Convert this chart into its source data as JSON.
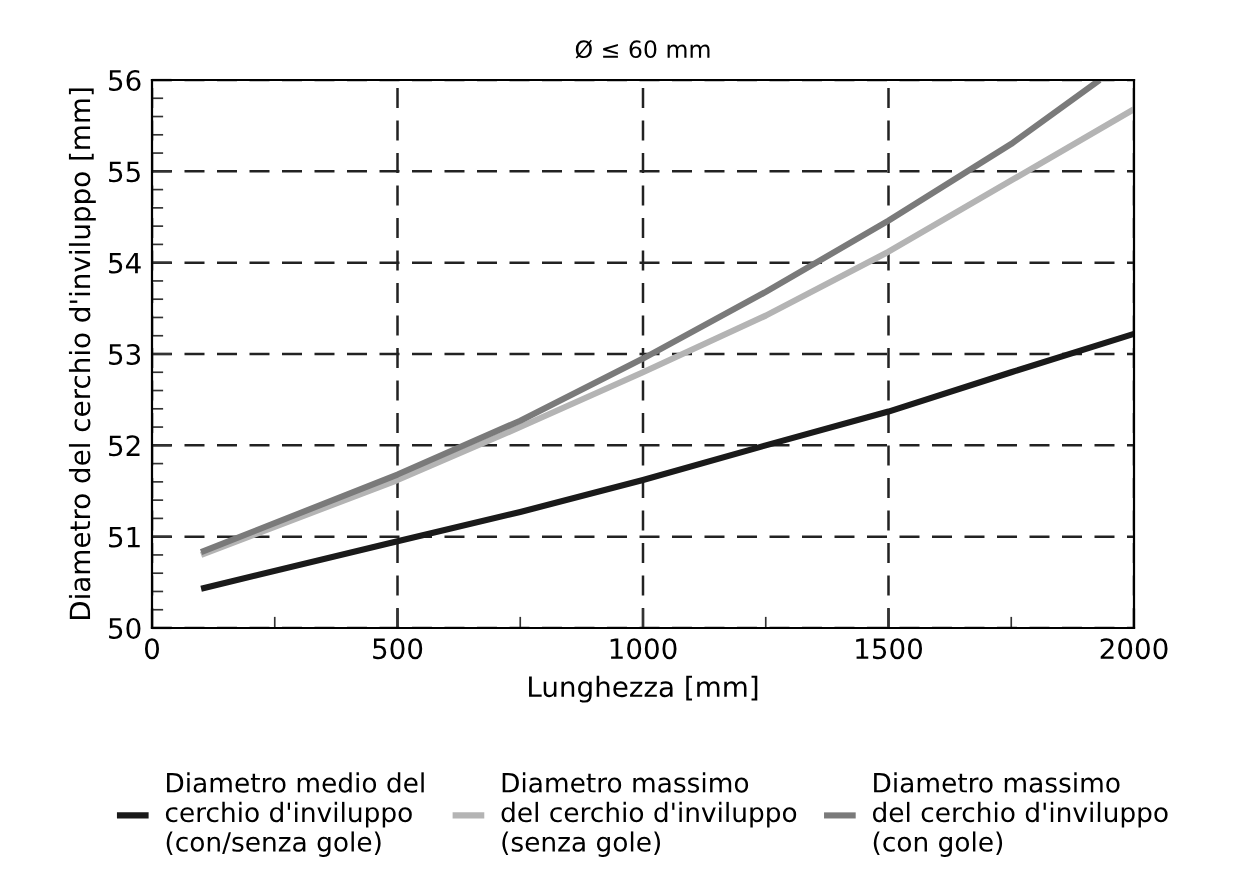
{
  "chart_data": {
    "type": "line",
    "title": "Ø ≤ 60 mm",
    "xlabel": "Lunghezza [mm]",
    "ylabel": "Diametro del cerchio d'inviluppo [mm]",
    "x": [
      100,
      500,
      750,
      1000,
      1250,
      1500,
      1750,
      2000
    ],
    "series": [
      {
        "name": "Diametro medio del\ncerchio d'inviluppo\n(con/senza gole)",
        "color": "#1a1a1a",
        "values": [
          50.43,
          50.95,
          51.27,
          51.62,
          52.0,
          52.37,
          52.8,
          53.22
        ]
      },
      {
        "name": "Diametro massimo\ndel cerchio d'inviluppo\n(senza gole)",
        "color": "#b4b4b4",
        "values": [
          50.8,
          51.62,
          52.2,
          52.8,
          53.42,
          54.12,
          54.9,
          55.68
        ]
      },
      {
        "name": "Diametro massimo\ndel cerchio d'inviluppo\n(con gole)",
        "color": "#7a7a7a",
        "x": [
          100,
          500,
          750,
          1000,
          1250,
          1500,
          1750,
          1930
        ],
        "values": [
          50.83,
          51.68,
          52.27,
          52.95,
          53.68,
          54.46,
          55.3,
          56.0
        ]
      }
    ],
    "xlim": [
      0,
      2000
    ],
    "ylim": [
      50,
      56
    ],
    "xticks": [
      0,
      500,
      1000,
      1500,
      2000
    ],
    "yticks": [
      50,
      51,
      52,
      53,
      54,
      55,
      56
    ],
    "grid": true,
    "legend": "bottom",
    "marker": "none",
    "line_style": "solid"
  }
}
